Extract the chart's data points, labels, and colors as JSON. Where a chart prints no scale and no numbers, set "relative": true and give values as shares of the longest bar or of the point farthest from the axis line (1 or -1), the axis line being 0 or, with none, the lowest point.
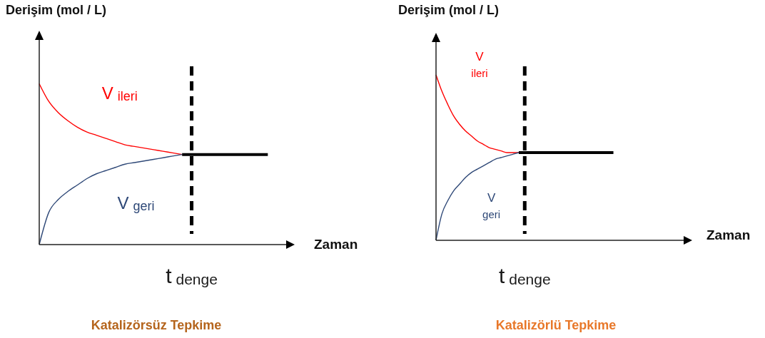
{
  "chart_data": [
    {
      "type": "line",
      "title": "Katalizörsüz Tepkime",
      "xlabel": "Zaman",
      "ylabel": "Derişim (mol / L)",
      "relative": true,
      "categories": [
        null,
        null,
        null,
        null,
        null,
        null,
        null,
        null,
        null,
        null,
        null,
        null,
        null,
        null,
        null,
        null,
        null,
        null,
        null,
        null,
        null,
        null,
        null,
        null,
        null,
        null,
        null
      ],
      "series": [
        {
          "name": "V$_{ileri}$",
          "color": "#ff0000",
          "values": [
            1,
            0.89,
            0.82,
            0.77,
            0.73,
            0.7,
            0.68,
            0.66,
            0.64,
            0.62,
            0.61,
            0.6,
            0.59,
            0.58,
            0.57,
            0.56,
            null,
            null,
            null,
            null,
            null,
            null,
            null,
            null,
            null,
            null,
            null
          ]
        },
        {
          "name": "V$_{geri}$",
          "color": "#2e4877",
          "values": [
            0,
            0.2,
            0.28,
            0.33,
            0.37,
            0.41,
            0.44,
            0.46,
            0.48,
            0.5,
            0.51,
            0.52,
            0.53,
            0.54,
            0.55,
            0.56,
            null,
            null,
            null,
            null,
            null,
            null,
            null,
            null,
            null,
            null,
            null
          ]
        },
        {
          "color": "#000000",
          "values": [
            null,
            null,
            null,
            null,
            null,
            null,
            null,
            null,
            null,
            null,
            null,
            null,
            null,
            null,
            null,
            0.56,
            0.56,
            0.56,
            0.56,
            0.56,
            0.56,
            0.56,
            0.56,
            0.56,
            0.56,
            null,
            null
          ]
        }
      ],
      "annotations": [
        "t$_{denge}$"
      ]
    },
    {
      "type": "line",
      "title": "Katalizörlü Tepkime",
      "xlabel": "Zaman",
      "ylabel": "Derişim (mol / L)",
      "relative": true,
      "categories": [
        null,
        null,
        null,
        null,
        null,
        null,
        null,
        null,
        null,
        null,
        null,
        null,
        null,
        null,
        null,
        null,
        null,
        null,
        null,
        null,
        null,
        null,
        null,
        null,
        null,
        null,
        null,
        null,
        null,
        null,
        null,
        null,
        null,
        null,
        null,
        null,
        null,
        null,
        null,
        null,
        null,
        null,
        null
      ],
      "series": [
        {
          "name": "V$_{ileri}$",
          "color": "#ff0000",
          "values": [
            1,
            0.9,
            0.82,
            0.75,
            0.7,
            0.66,
            0.63,
            0.6,
            0.58,
            0.56,
            0.55,
            0.54,
            0.53,
            0.53,
            0.53,
            null,
            null,
            null,
            null,
            null,
            null,
            null,
            null,
            null,
            null,
            null,
            null,
            null,
            null,
            null,
            null,
            null,
            null,
            null,
            null,
            null,
            null,
            null,
            null,
            null,
            null,
            null,
            null
          ]
        },
        {
          "name": "V$_{geri}$",
          "color": "#2e4877",
          "values": [
            0,
            0.16,
            0.24,
            0.3,
            0.34,
            0.38,
            0.41,
            0.43,
            0.45,
            0.47,
            0.49,
            0.5,
            0.51,
            0.52,
            0.53,
            null,
            null,
            null,
            null,
            null,
            null,
            null,
            null,
            null,
            null,
            null,
            null,
            null,
            null,
            null,
            null,
            null,
            null,
            null,
            null,
            null,
            null,
            null,
            null,
            null,
            null,
            null,
            null
          ]
        },
        {
          "color": "#000000",
          "values": [
            null,
            null,
            null,
            null,
            null,
            null,
            null,
            null,
            null,
            null,
            null,
            null,
            null,
            null,
            0.53,
            0.53,
            0.53,
            0.53,
            0.53,
            0.53,
            0.53,
            0.53,
            0.53,
            0.53,
            0.53,
            0.53,
            0.53,
            0.53,
            0.53,
            0.53,
            0.53,
            null,
            null,
            null,
            null,
            null,
            null,
            null,
            null,
            null,
            null,
            null,
            null
          ]
        }
      ],
      "annotations": [
        "t$_{denge}$"
      ]
    }
  ]
}
